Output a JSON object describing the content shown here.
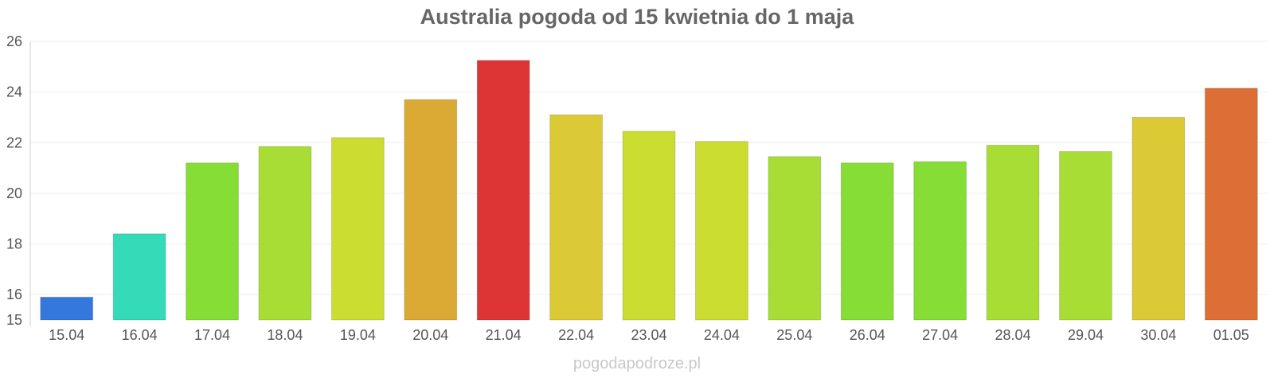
{
  "chart_data": {
    "type": "bar",
    "title": "Australia pogoda od 15 kwietnia do 1 maja",
    "xlabel": "",
    "ylabel": "",
    "categories": [
      "15.04",
      "16.04",
      "17.04",
      "18.04",
      "19.04",
      "20.04",
      "21.04",
      "22.04",
      "23.04",
      "24.04",
      "25.04",
      "26.04",
      "27.04",
      "28.04",
      "29.04",
      "30.04",
      "01.05"
    ],
    "values": [
      15.9,
      18.4,
      21.2,
      21.85,
      22.2,
      23.7,
      25.25,
      23.1,
      22.45,
      22.05,
      21.45,
      21.2,
      21.25,
      21.9,
      21.65,
      23.0,
      24.15
    ],
    "colors": [
      "#3478dd",
      "#35dbb8",
      "#86dd35",
      "#a8dd35",
      "#cbdd30",
      "#dbaa35",
      "#dd3535",
      "#dbc935",
      "#cbdd30",
      "#cbdd30",
      "#a8dd35",
      "#86dd35",
      "#86dd35",
      "#a8dd35",
      "#a8dd35",
      "#dbc935",
      "#dd6e35"
    ],
    "ylim": [
      15,
      26
    ],
    "yticks": [
      15,
      16,
      18,
      20,
      22,
      24,
      26
    ],
    "grid": true,
    "legend": "none"
  },
  "watermark": "pogodapodroze.pl"
}
